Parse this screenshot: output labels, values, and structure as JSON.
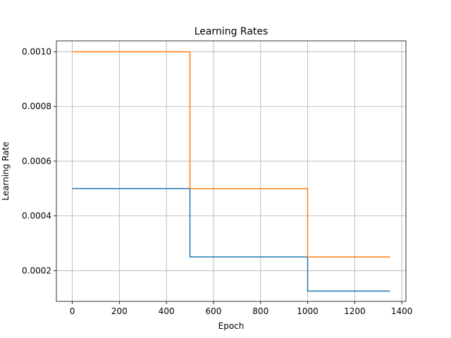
{
  "chart_data": {
    "type": "line",
    "title": "Learning Rates",
    "xlabel": "Epoch",
    "ylabel": "Learning Rate",
    "xlim": [
      -67.5,
      1417.5
    ],
    "ylim": [
      8.75e-05,
      0.00104
    ],
    "x_ticks": [
      0,
      200,
      400,
      600,
      800,
      1000,
      1200,
      1400
    ],
    "x_tick_labels": [
      "0",
      "200",
      "400",
      "600",
      "800",
      "1000",
      "1200",
      "1400"
    ],
    "y_ticks": [
      0.0002,
      0.0004,
      0.0006,
      0.0008,
      0.001
    ],
    "y_tick_labels": [
      "0.0002",
      "0.0004",
      "0.0006",
      "0.0008",
      "0.0010"
    ],
    "grid": true,
    "step_mode": "post",
    "series": [
      {
        "color": "#1f77b4",
        "x": [
          0,
          500,
          1000,
          1350
        ],
        "y": [
          0.0005,
          0.00025,
          0.000125,
          0.000125
        ]
      },
      {
        "color": "#ff7f0e",
        "x": [
          0,
          500,
          1000,
          1350
        ],
        "y": [
          0.001,
          0.0005,
          0.00025,
          0.00025
        ]
      }
    ]
  }
}
